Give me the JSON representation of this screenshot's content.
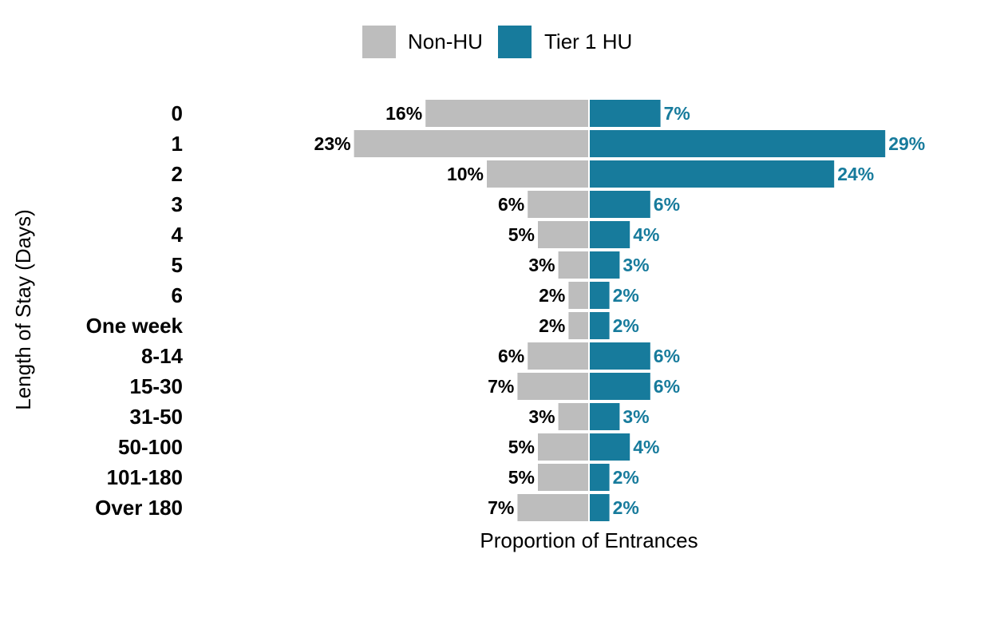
{
  "chart_data": {
    "type": "bar",
    "orientation": "horizontal-diverging",
    "categories": [
      "0",
      "1",
      "2",
      "3",
      "4",
      "5",
      "6",
      "One week",
      "8-14",
      "15-30",
      "31-50",
      "50-100",
      "101-180",
      "Over 180"
    ],
    "series": [
      {
        "name": "Non-HU",
        "color": "#bdbdbd",
        "side": "left",
        "values": [
          16,
          23,
          10,
          6,
          5,
          3,
          2,
          2,
          6,
          7,
          3,
          5,
          5,
          7
        ],
        "labels": [
          "16%",
          "23%",
          "10%",
          "6%",
          "5%",
          "3%",
          "2%",
          "2%",
          "6%",
          "7%",
          "3%",
          "5%",
          "5%",
          "7%"
        ]
      },
      {
        "name": "Tier 1 HU",
        "color": "#177b9c",
        "side": "right",
        "values": [
          7,
          29,
          24,
          6,
          4,
          3,
          2,
          2,
          6,
          6,
          3,
          4,
          2,
          2
        ],
        "labels": [
          "7%",
          "29%",
          "24%",
          "6%",
          "4%",
          "3%",
          "2%",
          "2%",
          "6%",
          "6%",
          "3%",
          "4%",
          "2%",
          "2%"
        ]
      }
    ],
    "xlabel": "Proportion of Entrances",
    "ylabel": "Length of Stay (Days)",
    "xlim": [
      -23,
      29
    ],
    "grid": false,
    "legend_position": "top-center",
    "label_color_right": "#177b9c"
  }
}
